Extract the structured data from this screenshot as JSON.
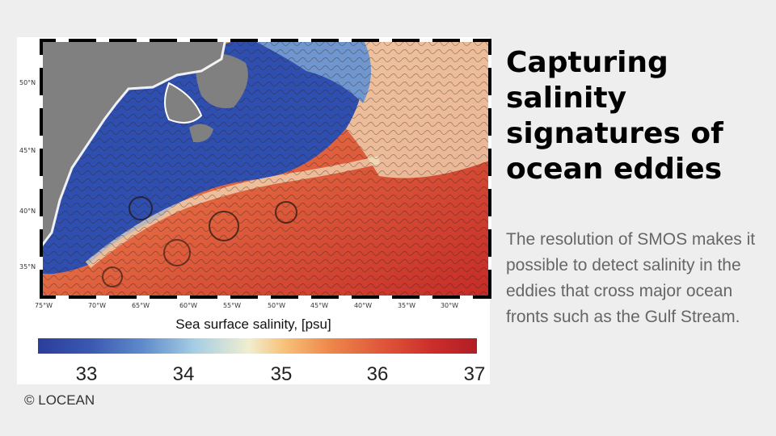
{
  "slide": {
    "title": "Capturing salinity signatures of ocean eddies",
    "body": "The resolution of SMOS makes it possible to detect salinity in the eddies that cross major ocean fronts such as the Gulf Stream.",
    "credit": "© LOCEAN"
  },
  "figure": {
    "lat_labels": [
      "50°N",
      "45°N",
      "40°N",
      "35°N"
    ],
    "lon_labels": [
      "75°W",
      "70°W",
      "65°W",
      "60°W",
      "55°W",
      "50°W",
      "45°W",
      "40°W",
      "35°W",
      "30°W"
    ],
    "colorbar": {
      "title": "Sea surface salinity, [psu]",
      "ticks": [
        "33",
        "34",
        "35",
        "36",
        "37"
      ]
    }
  }
}
